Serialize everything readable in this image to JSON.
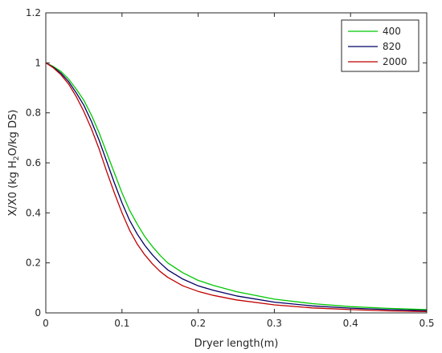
{
  "chart_data": {
    "type": "line",
    "title": "",
    "xlabel": "Dryer length(m)",
    "ylabel": "X/X0 (kg H",
    "ylabel_sub": "2",
    "ylabel_rest": "O/kg DS)",
    "xlim": [
      0,
      0.5
    ],
    "ylim": [
      0,
      1.2
    ],
    "xticks": [
      "0",
      "0.1",
      "0.2",
      "0.3",
      "0.4",
      "0.5"
    ],
    "yticks": [
      "0",
      "0.2",
      "0.4",
      "0.6",
      "0.8",
      "1",
      "1.2"
    ],
    "grid": false,
    "legend_position": "top-right",
    "x": [
      0,
      0.01,
      0.02,
      0.03,
      0.04,
      0.05,
      0.06,
      0.07,
      0.08,
      0.09,
      0.1,
      0.11,
      0.12,
      0.13,
      0.14,
      0.15,
      0.16,
      0.18,
      0.2,
      0.22,
      0.25,
      0.3,
      0.35,
      0.4,
      0.45,
      0.5
    ],
    "series": [
      {
        "name": "400",
        "color": "#00c800",
        "values": [
          1.0,
          0.985,
          0.965,
          0.935,
          0.895,
          0.85,
          0.79,
          0.72,
          0.64,
          0.56,
          0.48,
          0.41,
          0.355,
          0.305,
          0.265,
          0.23,
          0.2,
          0.16,
          0.13,
          0.11,
          0.085,
          0.055,
          0.037,
          0.025,
          0.018,
          0.013
        ]
      },
      {
        "name": "820",
        "color": "#000064",
        "values": [
          1.0,
          0.982,
          0.958,
          0.925,
          0.88,
          0.83,
          0.765,
          0.69,
          0.605,
          0.52,
          0.44,
          0.37,
          0.315,
          0.27,
          0.232,
          0.2,
          0.172,
          0.135,
          0.108,
          0.09,
          0.068,
          0.043,
          0.028,
          0.019,
          0.013,
          0.009
        ]
      },
      {
        "name": "2000",
        "color": "#c00000",
        "values": [
          1.0,
          0.98,
          0.952,
          0.915,
          0.865,
          0.805,
          0.735,
          0.655,
          0.565,
          0.48,
          0.4,
          0.33,
          0.275,
          0.232,
          0.196,
          0.166,
          0.142,
          0.108,
          0.086,
          0.07,
          0.052,
          0.032,
          0.02,
          0.013,
          0.008,
          0.005
        ]
      }
    ]
  }
}
